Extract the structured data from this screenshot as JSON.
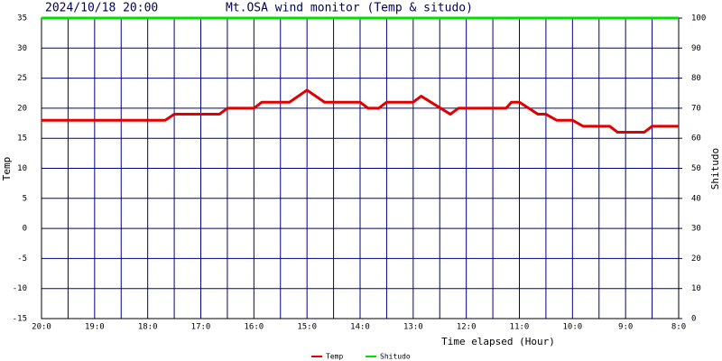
{
  "chart_data": {
    "type": "line",
    "date_label": "2024/10/18 20:00",
    "title": "Mt.OSA wind monitor (Temp & situdo)",
    "x_label": "Time elapsed (Hour)",
    "y_label": "Temp",
    "y2_label": "Shitudo",
    "xlim": [
      0,
      12
    ],
    "xticks": [
      {
        "value": 0,
        "label": "20:0"
      },
      {
        "value": 1,
        "label": "19:0"
      },
      {
        "value": 2,
        "label": "18:0"
      },
      {
        "value": 3,
        "label": "17:0"
      },
      {
        "value": 4,
        "label": "16:0"
      },
      {
        "value": 5,
        "label": "15:0"
      },
      {
        "value": 6,
        "label": "14:0"
      },
      {
        "value": 7,
        "label": "13:0"
      },
      {
        "value": 8,
        "label": "12:0"
      },
      {
        "value": 9,
        "label": "11:0"
      },
      {
        "value": 10,
        "label": "10:0"
      },
      {
        "value": 11,
        "label": "9:0"
      },
      {
        "value": 12,
        "label": "8:0"
      }
    ],
    "minor_xticks": [
      0.5,
      1.5,
      2.5,
      3.5,
      4.5,
      5.5,
      6.5,
      7.5,
      8.5,
      9.5,
      10.5,
      11.5
    ],
    "ylim": [
      -15,
      35
    ],
    "yticks": [
      -15,
      -10,
      -5,
      0,
      5,
      10,
      15,
      20,
      25,
      30,
      35
    ],
    "y2lim": [
      0,
      100
    ],
    "y2ticks": [
      0,
      10,
      20,
      30,
      40,
      50,
      60,
      70,
      80,
      90,
      100
    ],
    "grid": true,
    "series": [
      {
        "name": "Temp",
        "color": "#e00000",
        "x": [
          0,
          2.33,
          2.5,
          3.35,
          3.5,
          4.0,
          4.15,
          4.67,
          5.0,
          5.33,
          6.0,
          6.15,
          6.35,
          6.5,
          7.0,
          7.15,
          7.7,
          7.85,
          8.75,
          8.85,
          9.0,
          9.35,
          9.5,
          9.7,
          10.0,
          10.2,
          10.7,
          10.85,
          11.35,
          11.5,
          12
        ],
        "values": [
          18,
          18,
          19,
          19,
          20,
          20,
          21,
          21,
          23,
          21,
          21,
          20,
          20,
          21,
          21,
          22,
          19,
          20,
          20,
          21,
          21,
          19,
          19,
          18,
          18,
          17,
          17,
          16,
          16,
          17,
          17
        ]
      },
      {
        "name": "Shitudo",
        "color": "#00e000",
        "axis": "y2",
        "x": [
          0,
          12
        ],
        "values": [
          100,
          100
        ]
      }
    ]
  }
}
